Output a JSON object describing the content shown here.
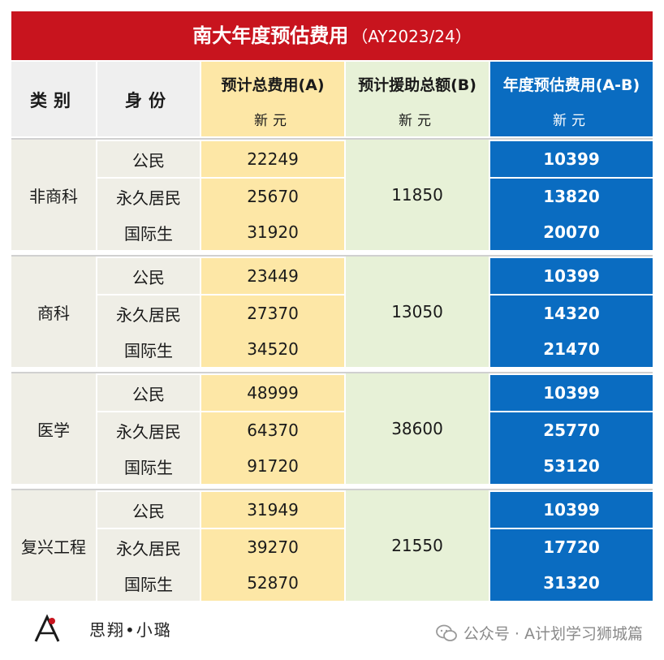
{
  "title": {
    "main": "南大年度预估费用",
    "sub": "（AY2023/24）"
  },
  "headers": {
    "category": "类别",
    "identity": "身份",
    "total": "预计总费用(A)",
    "aid": "预计援助总额(B)",
    "net": "年度预估费用(A-B)",
    "unit": "新元"
  },
  "groups": [
    {
      "category": "非商科",
      "aid": "11850",
      "rows": [
        {
          "identity": "公民",
          "total": "22249",
          "net": "10399"
        },
        {
          "identity": "永久居民",
          "total": "25670",
          "net": "13820"
        },
        {
          "identity": "国际生",
          "total": "31920",
          "net": "20070"
        }
      ]
    },
    {
      "category": "商科",
      "aid": "13050",
      "rows": [
        {
          "identity": "公民",
          "total": "23449",
          "net": "10399"
        },
        {
          "identity": "永久居民",
          "total": "27370",
          "net": "14320"
        },
        {
          "identity": "国际生",
          "total": "34520",
          "net": "21470"
        }
      ]
    },
    {
      "category": "医学",
      "aid": "38600",
      "rows": [
        {
          "identity": "公民",
          "total": "48999",
          "net": "10399"
        },
        {
          "identity": "永久居民",
          "total": "64370",
          "net": "25770"
        },
        {
          "identity": "国际生",
          "total": "91720",
          "net": "53120"
        }
      ]
    },
    {
      "category": "复兴工程",
      "aid": "21550",
      "rows": [
        {
          "identity": "公民",
          "total": "31949",
          "net": "10399"
        },
        {
          "identity": "永久居民",
          "total": "39270",
          "net": "17720"
        },
        {
          "identity": "国际生",
          "total": "52870",
          "net": "31320"
        }
      ]
    }
  ],
  "footer": {
    "author": "思翔•小璐",
    "wechat": "公众号 · A计划学习狮城篇"
  },
  "colors": {
    "title_bg": "#c8141e",
    "total_bg": "#fde7a6",
    "aid_bg": "#e7f1d7",
    "net_bg": "#0a6cc1"
  }
}
